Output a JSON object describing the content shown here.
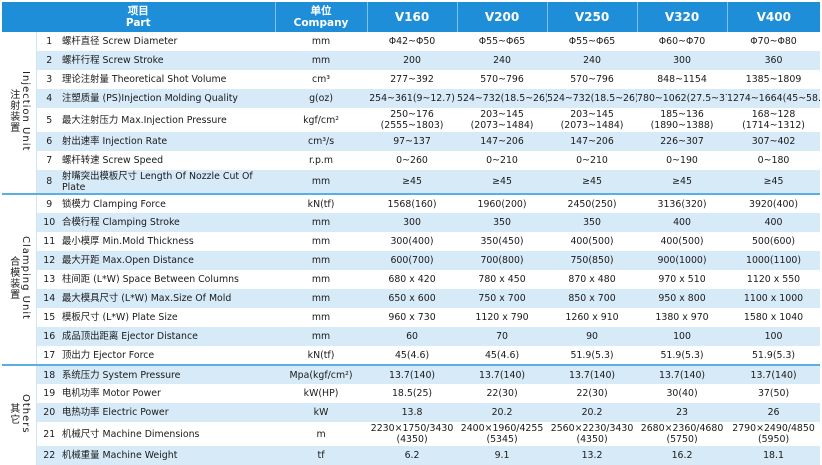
{
  "header": {
    "part_cn": "项目",
    "part_en": "Part",
    "unit_cn": "单位",
    "unit_en": "Company",
    "models": [
      "V160",
      "V200",
      "V250",
      "V320",
      "V400"
    ]
  },
  "groups": [
    {
      "label_en": "Injection Unit",
      "label_cn": "注射装置",
      "rows": [
        {
          "no": "1",
          "part": "螺杆直径 Screw Diameter",
          "unit": "mm",
          "values": [
            "Φ42~Φ50",
            "Φ55~Φ65",
            "Φ55~Φ65",
            "Φ60~Φ70",
            "Φ70~Φ80"
          ]
        },
        {
          "no": "2",
          "part": "螺杆行程 Screw Stroke",
          "unit": "mm",
          "values": [
            "200",
            "240",
            "240",
            "300",
            "360"
          ]
        },
        {
          "no": "3",
          "part": "理论注射量 Theoretical Shot Volume",
          "unit": "cm³",
          "values": [
            "277~392",
            "570~796",
            "570~796",
            "848~1154",
            "1385~1809"
          ]
        },
        {
          "no": "4",
          "part": "注塑质量 (PS)Injection Molding Quality",
          "unit": "g(oz)",
          "values": [
            "254~361(9~12.7)",
            "524~732(18.5~26)",
            "524~732(18.5~26)",
            "780~1062(27.5~37.5)",
            "1274~1664(45~58.8)"
          ]
        },
        {
          "no": "5",
          "part": "最大注射压力 Max.Injection Pressure",
          "unit": "kgf/cm²",
          "values": [
            "250~176 (2555~1803)",
            "203~145 (2073~1484)",
            "203~145 (2073~1484)",
            "185~136 (1890~1388)",
            "168~128 (1714~1312)"
          ]
        },
        {
          "no": "6",
          "part": "射出速率 Injection Rate",
          "unit": "cm³/s",
          "values": [
            "97~137",
            "147~206",
            "147~206",
            "226~307",
            "307~402"
          ]
        },
        {
          "no": "7",
          "part": "螺杆转速 Screw Speed",
          "unit": "r.p.m",
          "values": [
            "0~260",
            "0~210",
            "0~210",
            "0~190",
            "0~180"
          ]
        },
        {
          "no": "8",
          "part": "射嘴突出模板尺寸 Length Of Nozzle Cut Of Plate",
          "unit": "mm",
          "values": [
            "≥45",
            "≥45",
            "≥45",
            "≥45",
            "≥45"
          ]
        }
      ]
    },
    {
      "label_en": "Clamping Unit",
      "label_cn": "合模装置",
      "rows": [
        {
          "no": "9",
          "part": "锁模力 Clamping Force",
          "unit": "kN(tf)",
          "values": [
            "1568(160)",
            "1960(200)",
            "2450(250)",
            "3136(320)",
            "3920(400)"
          ]
        },
        {
          "no": "10",
          "part": "合模行程 Clamping Stroke",
          "unit": "mm",
          "values": [
            "300",
            "350",
            "350",
            "400",
            "400"
          ]
        },
        {
          "no": "11",
          "part": "最小模厚 Min.Mold Thickness",
          "unit": "mm",
          "values": [
            "300(400)",
            "350(450)",
            "400(500)",
            "400(500)",
            "500(600)"
          ]
        },
        {
          "no": "12",
          "part": "最大开距 Max.Open Distance",
          "unit": "mm",
          "values": [
            "600(700)",
            "700(800)",
            "750(850)",
            "900(1000)",
            "1000(1100)"
          ]
        },
        {
          "no": "13",
          "part": "柱间距 (L*W) Space Between Columns",
          "unit": "mm",
          "values": [
            "680 x 420",
            "780 x 450",
            "870 x 480",
            "970 x 510",
            "1120 x 550"
          ]
        },
        {
          "no": "14",
          "part": "最大模具尺寸 (L*W) Max.Size Of Mold",
          "unit": "mm",
          "values": [
            "650 x 600",
            "750 x 700",
            "850 x 700",
            "950 x 800",
            "1100 x 1000"
          ]
        },
        {
          "no": "15",
          "part": "模板尺寸 (L*W) Plate Size",
          "unit": "mm",
          "values": [
            "960 x 730",
            "1120 x 790",
            "1260 x 910",
            "1380 x 970",
            "1580 x 1040"
          ]
        },
        {
          "no": "16",
          "part": "成品顶出距离 Ejector Distance",
          "unit": "mm",
          "values": [
            "60",
            "70",
            "90",
            "100",
            "100"
          ]
        },
        {
          "no": "17",
          "part": "顶出力 Ejector Force",
          "unit": "kN(tf)",
          "values": [
            "45(4.6)",
            "45(4.6)",
            "51.9(5.3)",
            "51.9(5.3)",
            "51.9(5.3)"
          ]
        }
      ]
    },
    {
      "label_en": "Others",
      "label_cn": "其它",
      "rows": [
        {
          "no": "18",
          "part": "系统压力 System Pressure",
          "unit": "Mpa(kgf/cm²)",
          "values": [
            "13.7(140)",
            "13.7(140)",
            "13.7(140)",
            "13.7(140)",
            "13.7(140)"
          ]
        },
        {
          "no": "19",
          "part": "电机功率 Motor Power",
          "unit": "kW(HP)",
          "values": [
            "18.5(25)",
            "22(30)",
            "22(30)",
            "30(40)",
            "37(50)"
          ]
        },
        {
          "no": "20",
          "part": "电热功率 Electric Power",
          "unit": "kW",
          "values": [
            "13.8",
            "20.2",
            "20.2",
            "23",
            "26"
          ]
        },
        {
          "no": "21",
          "part": "机械尺寸 Machine Dimensions",
          "unit": "m",
          "values": [
            "2230×1750/3430 (4350)",
            "2400×1960/4255 (5345)",
            "2560×2230/3430 (4350)",
            "2680×2360/4680 (5750)",
            "2790×2490/4850 (5950)"
          ]
        },
        {
          "no": "22",
          "part": "机械重量 Machine Weight",
          "unit": "tf",
          "values": [
            "6.2",
            "9.1",
            "13.2",
            "16.2",
            "18.1"
          ]
        }
      ]
    }
  ]
}
